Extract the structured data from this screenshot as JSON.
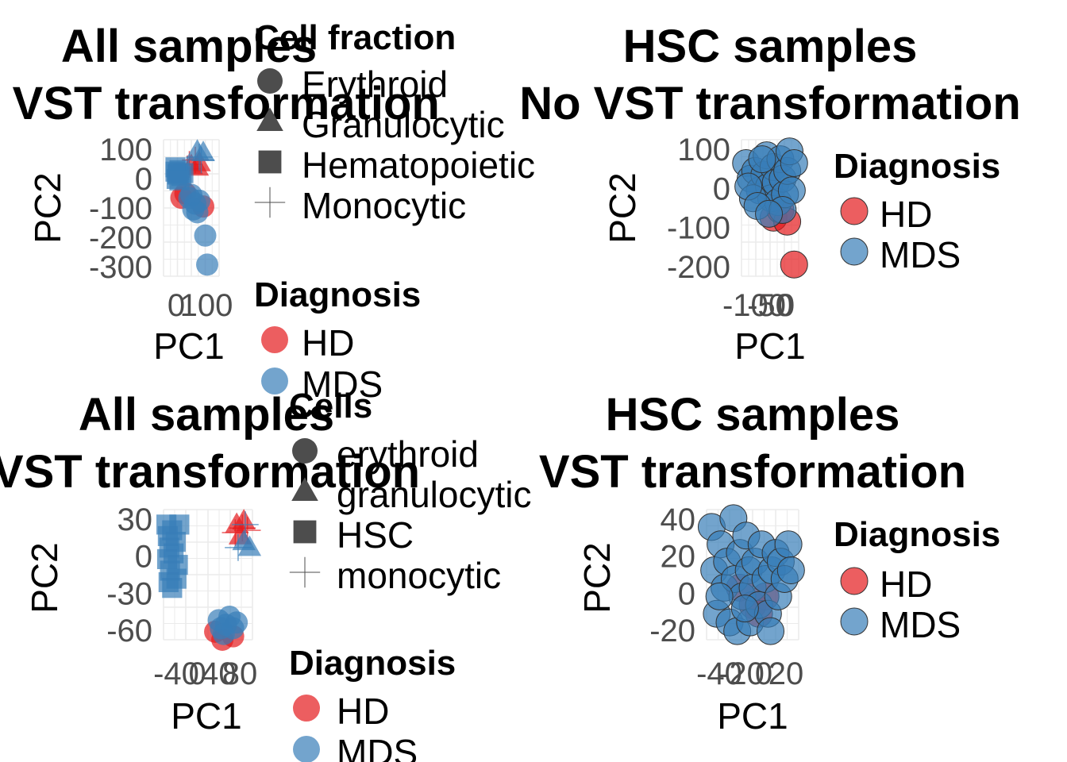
{
  "colors": {
    "HD": "#E41A1C",
    "MDS": "#377EB8",
    "grid": "#EBEBEB",
    "tick": "#4d4d4d"
  },
  "chart_data": [
    {
      "type": "scatter",
      "title": [
        "All samples",
        "No VST transformation"
      ],
      "xlabel": "PC1",
      "ylabel": "PC2",
      "xticks": [
        "0",
        "100"
      ],
      "yticks": [
        "100",
        "0",
        "-100",
        "-200",
        "-300"
      ],
      "xlim": [
        -25,
        115
      ],
      "ylim": [
        -340,
        130
      ],
      "grid": true,
      "shape_legend": {
        "title": "Cell fraction",
        "items": [
          "Erythroid",
          "Granulocytic",
          "Hematopoietic",
          "Monocytic"
        ]
      },
      "color_legend": {
        "title": "Diagnosis",
        "items": [
          "HD",
          "MDS"
        ]
      },
      "series": [
        {
          "name": "HD",
          "points": [
            [
              20,
              -70,
              "circle"
            ],
            [
              30,
              -55,
              "circle"
            ],
            [
              45,
              40,
              "triangle"
            ],
            [
              60,
              35,
              "triangle"
            ],
            [
              55,
              60,
              "plus"
            ],
            [
              40,
              45,
              "plus"
            ],
            [
              65,
              50,
              "triangle"
            ],
            [
              35,
              30,
              "plus"
            ],
            [
              75,
              -100,
              "circle"
            ]
          ]
        },
        {
          "name": "MDS",
          "points": [
            [
              5,
              20,
              "square"
            ],
            [
              10,
              10,
              "square"
            ],
            [
              15,
              25,
              "square"
            ],
            [
              8,
              -5,
              "square"
            ],
            [
              12,
              15,
              "square"
            ],
            [
              20,
              5,
              "square"
            ],
            [
              25,
              15,
              "square"
            ],
            [
              5,
              35,
              "square"
            ],
            [
              15,
              -10,
              "square"
            ],
            [
              60,
              90,
              "triangle"
            ],
            [
              75,
              85,
              "triangle"
            ],
            [
              65,
              70,
              "plus"
            ],
            [
              70,
              60,
              "plus"
            ],
            [
              40,
              -70,
              "circle"
            ],
            [
              55,
              -90,
              "circle"
            ],
            [
              65,
              -80,
              "circle"
            ],
            [
              50,
              -110,
              "circle"
            ],
            [
              45,
              -60,
              "circle"
            ],
            [
              60,
              -120,
              "circle"
            ],
            [
              80,
              -200,
              "circle"
            ],
            [
              85,
              -300,
              "circle"
            ]
          ]
        }
      ]
    },
    {
      "type": "scatter",
      "title": [
        "HSC samples",
        "No VST transformation"
      ],
      "xlabel": "PC1",
      "ylabel": "PC2",
      "xticks": [
        "-100",
        "-50",
        "0"
      ],
      "yticks": [
        "100",
        "0",
        "-100",
        "-200"
      ],
      "xlim": [
        -110,
        15
      ],
      "ylim": [
        -230,
        120
      ],
      "grid": true,
      "color_legend": {
        "title": "Diagnosis",
        "items": [
          "HD",
          "MDS"
        ]
      },
      "series": [
        {
          "name": "HD",
          "points": [
            [
              -40,
              -80
            ],
            [
              -25,
              -60
            ],
            [
              -10,
              -90
            ],
            [
              5,
              -200
            ]
          ]
        },
        {
          "name": "MDS",
          "points": [
            [
              -100,
              60
            ],
            [
              -90,
              20
            ],
            [
              -80,
              40
            ],
            [
              -70,
              -10
            ],
            [
              -60,
              30
            ],
            [
              -55,
              80
            ],
            [
              -50,
              0
            ],
            [
              -45,
              -30
            ],
            [
              -40,
              50
            ],
            [
              -35,
              10
            ],
            [
              -30,
              -40
            ],
            [
              -25,
              70
            ],
            [
              -20,
              20
            ],
            [
              -15,
              -20
            ],
            [
              -10,
              40
            ],
            [
              -5,
              90
            ],
            [
              0,
              -10
            ],
            [
              5,
              60
            ],
            [
              -85,
              -30
            ],
            [
              -65,
              70
            ],
            [
              -95,
              0
            ],
            [
              -75,
              -50
            ],
            [
              -20,
              -60
            ],
            [
              -50,
              -70
            ]
          ]
        }
      ]
    },
    {
      "type": "scatter",
      "title": [
        "All samples",
        "VST transformation"
      ],
      "xlabel": "PC1",
      "ylabel": "PC2",
      "xticks": [
        "-40",
        "0",
        "40",
        "80"
      ],
      "yticks": [
        "30",
        "0",
        "-30",
        "-60"
      ],
      "xlim": [
        -42,
        82
      ],
      "ylim": [
        -75,
        38
      ],
      "grid": true,
      "shape_legend": {
        "title": "Cells",
        "items": [
          "erythroid",
          "granulocytic",
          "HSC",
          "monocytic"
        ]
      },
      "color_legend": {
        "title": "Diagnosis",
        "items": [
          "HD",
          "MDS"
        ]
      },
      "series": [
        {
          "name": "HD",
          "points": [
            [
              60,
              25,
              "triangle"
            ],
            [
              65,
              15,
              "triangle"
            ],
            [
              70,
              28,
              "triangle"
            ],
            [
              75,
              20,
              "plus"
            ],
            [
              58,
              18,
              "plus"
            ],
            [
              68,
              22,
              "plus"
            ],
            [
              40,
              -75,
              "circle"
            ],
            [
              55,
              -72,
              "circle"
            ],
            [
              30,
              -68,
              "circle"
            ]
          ]
        },
        {
          "name": "MDS",
          "points": [
            [
              -38,
              25,
              "square"
            ],
            [
              -36,
              15,
              "square"
            ],
            [
              -34,
              5,
              "square"
            ],
            [
              -37,
              -5,
              "square"
            ],
            [
              -33,
              -15,
              "square"
            ],
            [
              -30,
              20,
              "square"
            ],
            [
              -28,
              0,
              "square"
            ],
            [
              -25,
              10,
              "square"
            ],
            [
              -22,
              -10,
              "square"
            ],
            [
              -20,
              25,
              "square"
            ],
            [
              -35,
              -25,
              "square"
            ],
            [
              -24,
              -22,
              "square"
            ],
            [
              -30,
              -30,
              "square"
            ],
            [
              70,
              10,
              "triangle"
            ],
            [
              78,
              5,
              "triangle"
            ],
            [
              72,
              25,
              "plus"
            ],
            [
              62,
              5,
              "plus"
            ],
            [
              35,
              -58,
              "circle"
            ],
            [
              45,
              -62,
              "circle"
            ],
            [
              50,
              -55,
              "circle"
            ],
            [
              55,
              -65,
              "circle"
            ],
            [
              42,
              -70,
              "circle"
            ],
            [
              60,
              -60,
              "circle"
            ],
            [
              38,
              -65,
              "circle"
            ]
          ]
        }
      ]
    },
    {
      "type": "scatter",
      "title": [
        "HSC samples",
        "VST transformation"
      ],
      "xlabel": "PC1",
      "ylabel": "PC2",
      "xticks": [
        "-40",
        "-20",
        "0",
        "20"
      ],
      "yticks": [
        "40",
        "20",
        "0",
        "-20"
      ],
      "xlim": [
        -46,
        26
      ],
      "ylim": [
        -30,
        45
      ],
      "grid": true,
      "color_legend": {
        "title": "Diagnosis",
        "items": [
          "HD",
          "MDS"
        ]
      },
      "series": [
        {
          "name": "HD",
          "points": [
            [
              -20,
              0
            ],
            [
              -10,
              -10
            ],
            [
              0,
              -5
            ],
            [
              -5,
              -15
            ]
          ]
        },
        {
          "name": "MDS",
          "points": [
            [
              -42,
              35
            ],
            [
              -40,
              10
            ],
            [
              -38,
              -15
            ],
            [
              -35,
              25
            ],
            [
              -32,
              0
            ],
            [
              -30,
              15
            ],
            [
              -28,
              -20
            ],
            [
              -25,
              40
            ],
            [
              -24,
              5
            ],
            [
              -22,
              -25
            ],
            [
              -20,
              20
            ],
            [
              -18,
              -5
            ],
            [
              -15,
              30
            ],
            [
              -13,
              10
            ],
            [
              -12,
              -20
            ],
            [
              -10,
              0
            ],
            [
              -8,
              15
            ],
            [
              -5,
              -10
            ],
            [
              -3,
              25
            ],
            [
              0,
              5
            ],
            [
              2,
              -15
            ],
            [
              5,
              10
            ],
            [
              8,
              20
            ],
            [
              10,
              -5
            ],
            [
              12,
              15
            ],
            [
              15,
              5
            ],
            [
              18,
              25
            ],
            [
              20,
              10
            ],
            [
              -36,
              -5
            ],
            [
              -16,
              -12
            ],
            [
              4,
              -25
            ]
          ]
        }
      ]
    }
  ]
}
